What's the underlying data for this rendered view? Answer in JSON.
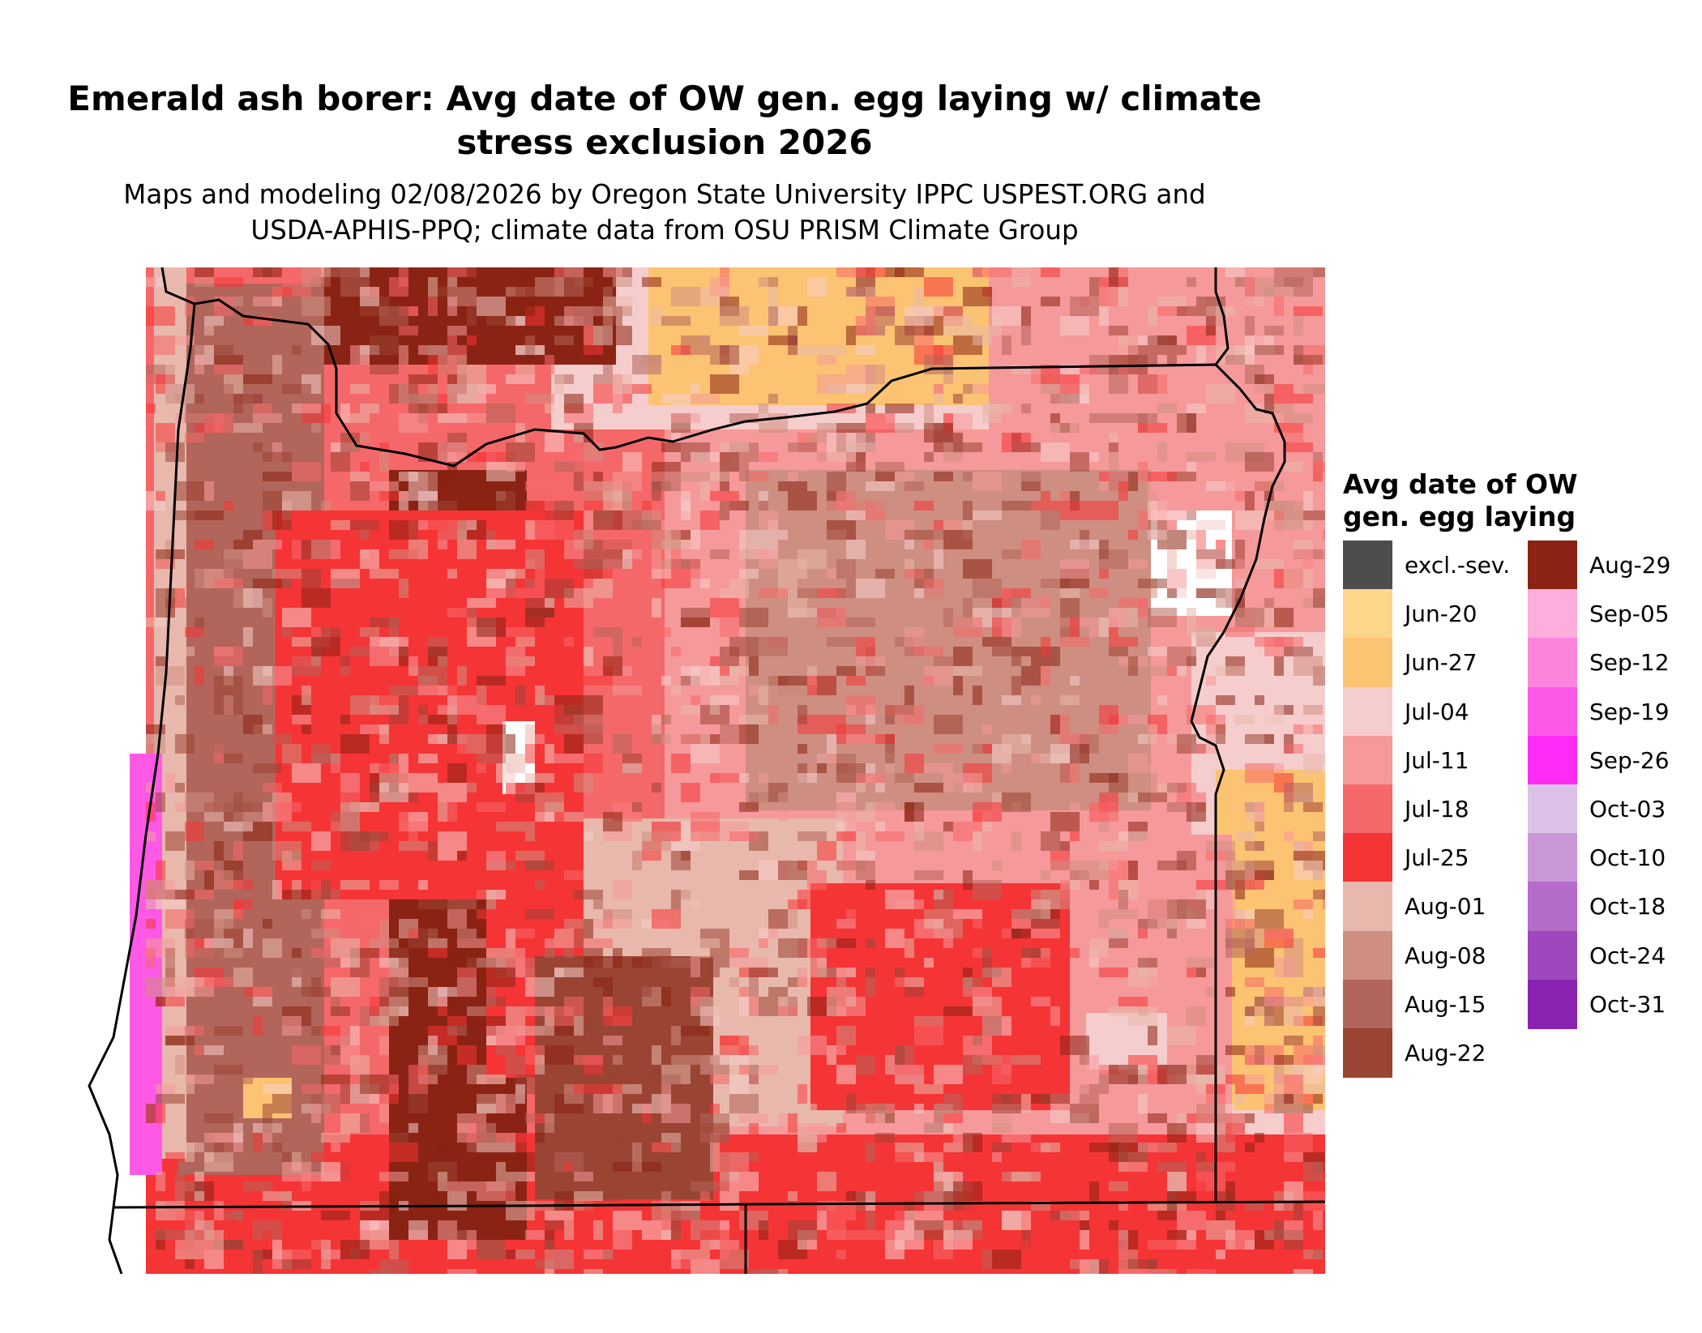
{
  "title_line1": "Emerald ash borer: Avg date of OW gen. egg laying w/ climate",
  "title_line2": "stress exclusion 2026",
  "subtitle_line1": "Maps and modeling 02/08/2026 by Oregon State University IPPC USPEST.ORG and",
  "subtitle_line2": "USDA-APHIS-PPQ; climate data from OSU PRISM Climate Group",
  "legend": {
    "title_line1": "Avg date of OW",
    "title_line2": "gen. egg laying",
    "items": [
      {
        "label": "excl.-sev.",
        "color": "#4d4d4d"
      },
      {
        "label": "Jun-20",
        "color": "#fdd68c"
      },
      {
        "label": "Jun-27",
        "color": "#fcc372"
      },
      {
        "label": "Jul-04",
        "color": "#f5cdcc"
      },
      {
        "label": "Jul-11",
        "color": "#f5999a"
      },
      {
        "label": "Jul-18",
        "color": "#f56869"
      },
      {
        "label": "Jul-25",
        "color": "#f53436"
      },
      {
        "label": "Aug-01",
        "color": "#e8b8ac"
      },
      {
        "label": "Aug-08",
        "color": "#cf8e82"
      },
      {
        "label": "Aug-15",
        "color": "#b2655a"
      },
      {
        "label": "Aug-22",
        "color": "#9a4434"
      },
      {
        "label": "Aug-29",
        "color": "#8a2313"
      },
      {
        "label": "Sep-05",
        "color": "#fdaedc"
      },
      {
        "label": "Sep-12",
        "color": "#fd84dc"
      },
      {
        "label": "Sep-19",
        "color": "#fd59e6"
      },
      {
        "label": "Sep-26",
        "color": "#fd2bf5"
      },
      {
        "label": "Oct-03",
        "color": "#dcc2e6"
      },
      {
        "label": "Oct-10",
        "color": "#c997d8"
      },
      {
        "label": "Oct-18",
        "color": "#b46cc9"
      },
      {
        "label": "Oct-24",
        "color": "#9f48bd"
      },
      {
        "label": "Oct-31",
        "color": "#8a23b2"
      }
    ]
  }
}
